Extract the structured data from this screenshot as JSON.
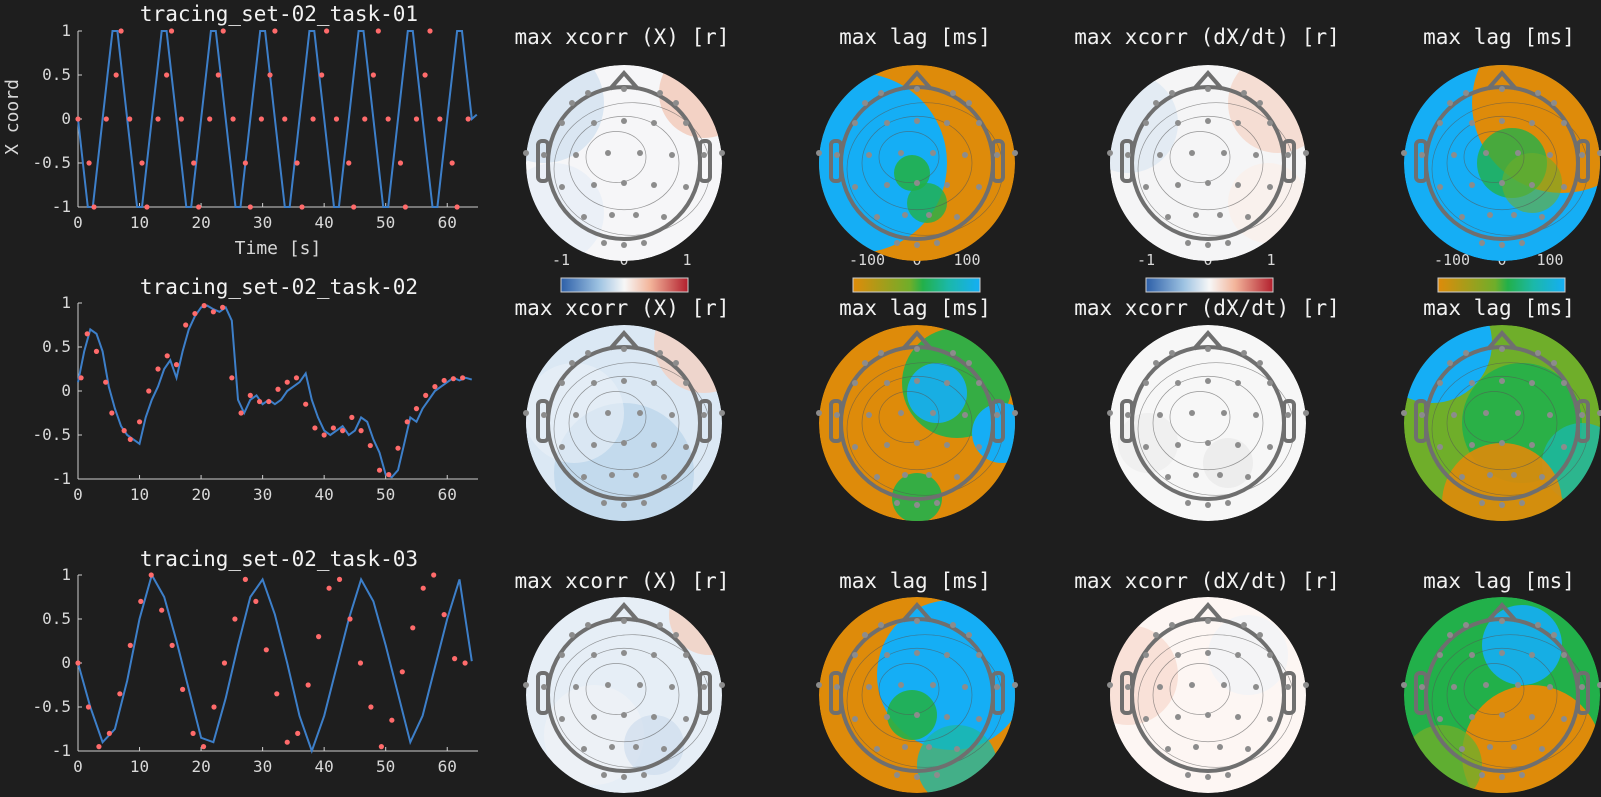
{
  "colors": {
    "background": "#1e1e1e",
    "trace": "#3d7fc9",
    "markers": "#ff6b6b",
    "lag_orange": "#de8b0a",
    "lag_green": "#22b04a",
    "lag_blue": "#15aef5",
    "xcorr_negative": "#2d5fa8",
    "xcorr_positive": "#b21f2d",
    "head_outline": "#6f6f6f"
  },
  "chart_data": [
    {
      "type": "line",
      "title": "tracing_set-02_task-01",
      "xlabel": "Time [s]",
      "ylabel": "X coord",
      "xlim": [
        0,
        65
      ],
      "ylim": [
        -1,
        1
      ],
      "xticks": [
        "0",
        "10",
        "20",
        "30",
        "40",
        "50",
        "60"
      ],
      "yticks": [
        "1",
        "0.5",
        "0",
        "-0.5",
        "-1"
      ],
      "series": [
        {
          "x": [
            0,
            0.8,
            1.6,
            2.4,
            3.2,
            4.0,
            4.8,
            5.6,
            6.4,
            7.2,
            8.0,
            8.8,
            9.6,
            10.4,
            11.2,
            12.0,
            12.8,
            13.6,
            14.4,
            15.2,
            16.0,
            16.8,
            17.6,
            18.4,
            19.2,
            20.0,
            20.8,
            21.6,
            22.4,
            23.2,
            24.0,
            24.8,
            25.6,
            26.4,
            27.2,
            28.0,
            28.8,
            29.6,
            30.4,
            31.2,
            32.0,
            32.8,
            33.6,
            34.4,
            35.2,
            36.0,
            36.8,
            37.6,
            38.4,
            39.2,
            40.0,
            40.8,
            41.6,
            42.4,
            43.2,
            44.0,
            44.8,
            45.6,
            46.4,
            47.2,
            48.0,
            48.8,
            49.6,
            50.4,
            51.2,
            52.0,
            52.8,
            53.6,
            54.4,
            55.2,
            56.0,
            56.8,
            57.6,
            58.4,
            59.2,
            60.0,
            60.8,
            61.6,
            62.4,
            63.2,
            64.0,
            64.8
          ],
          "y": [
            0,
            -0.5,
            -1,
            -1,
            -0.5,
            0,
            0.5,
            1,
            1,
            0.5,
            0,
            -0.5,
            -1,
            -1,
            -0.5,
            0,
            0.5,
            1,
            1,
            0.5,
            0,
            -0.5,
            -1,
            -1,
            -0.5,
            0,
            0.5,
            1,
            1,
            0.5,
            0,
            -0.5,
            -1,
            -1,
            -0.5,
            0,
            0.5,
            1,
            1,
            0.5,
            0,
            -0.5,
            -1,
            -1,
            -0.5,
            0,
            0.5,
            1,
            1,
            0.5,
            0,
            -0.5,
            -1,
            -1,
            -0.5,
            0,
            0.5,
            1,
            1,
            0.5,
            0,
            -0.5,
            -1,
            -1,
            -0.5,
            0,
            0.5,
            1,
            1,
            0.5,
            0,
            -0.5,
            -1,
            -1,
            -0.5,
            0,
            0.5,
            1,
            1,
            0.5,
            0,
            0.05
          ]
        }
      ],
      "markers": {
        "x": [
          0,
          1.8,
          2.6,
          4.6,
          6.2,
          7.0,
          8.4,
          10.4,
          11.2,
          13.0,
          14.4,
          15.2,
          16.8,
          18.8,
          19.6,
          21.4,
          22.8,
          23.6,
          25.2,
          27.2,
          28.0,
          29.8,
          31.2,
          32.0,
          33.6,
          35.6,
          36.4,
          38.2,
          39.6,
          40.4,
          42.0,
          44.0,
          44.8,
          46.6,
          48.0,
          48.8,
          50.4,
          52.4,
          53.2,
          55.0,
          56.4,
          57.2,
          58.8,
          60.8,
          61.6,
          63.4
        ],
        "y": [
          0,
          -0.5,
          -1,
          0,
          0.5,
          1,
          0,
          -0.5,
          -1,
          0,
          0.5,
          1,
          0,
          -0.5,
          -1,
          0,
          0.5,
          1,
          0,
          -0.5,
          -1,
          0,
          0.5,
          1,
          0,
          -0.5,
          -1,
          0,
          0.5,
          1,
          0,
          -0.5,
          -1,
          0,
          0.5,
          1,
          0,
          -0.5,
          -1,
          0,
          0.5,
          1,
          0,
          -0.5,
          -1,
          0
        ]
      }
    },
    {
      "type": "line",
      "title": "tracing_set-02_task-02",
      "xlim": [
        0,
        65
      ],
      "ylim": [
        -1,
        1
      ],
      "xticks": [
        "0",
        "10",
        "20",
        "30",
        "40",
        "50",
        "60"
      ],
      "yticks": [
        "1",
        "0.5",
        "0",
        "-0.5",
        "-1"
      ],
      "series": [
        {
          "x": [
            0,
            1,
            2,
            3,
            4,
            5,
            6,
            7,
            8,
            9,
            10,
            11,
            12,
            13,
            14,
            15,
            16,
            17,
            18,
            19,
            20,
            21,
            22,
            23,
            24,
            25,
            26,
            27,
            28,
            29,
            30,
            31,
            32,
            33,
            34,
            35,
            36,
            37,
            38,
            39,
            40,
            41,
            42,
            43,
            44,
            45,
            46,
            47,
            48,
            49,
            50,
            51,
            52,
            53,
            54,
            55,
            56,
            57,
            58,
            59,
            60,
            61,
            62,
            63,
            64
          ],
          "y": [
            0.1,
            0.45,
            0.7,
            0.65,
            0.45,
            0.05,
            -0.2,
            -0.4,
            -0.5,
            -0.55,
            -0.6,
            -0.3,
            -0.1,
            0.05,
            0.25,
            0.35,
            0.15,
            0.45,
            0.7,
            0.85,
            0.95,
            0.97,
            0.93,
            0.9,
            0.95,
            0.8,
            -0.1,
            -0.25,
            -0.1,
            -0.05,
            -0.15,
            -0.1,
            -0.15,
            -0.1,
            0,
            0.05,
            0.1,
            0.2,
            -0.1,
            -0.3,
            -0.45,
            -0.5,
            -0.45,
            -0.4,
            -0.5,
            -0.45,
            -0.3,
            -0.35,
            -0.55,
            -0.7,
            -0.95,
            -0.98,
            -0.9,
            -0.6,
            -0.3,
            -0.35,
            -0.2,
            -0.1,
            0,
            0.05,
            0.1,
            0.15,
            0.12,
            0.15,
            0.13
          ]
        }
      ],
      "markers": {
        "x": [
          0.5,
          1.5,
          3,
          4.5,
          5.5,
          7.5,
          8.5,
          10,
          11.5,
          13,
          14.5,
          16,
          17.5,
          19,
          20.5,
          22,
          23.5,
          25,
          26.5,
          28,
          29.5,
          31,
          32.5,
          34,
          35.5,
          37,
          38.5,
          40,
          41.5,
          43,
          44.5,
          46,
          47.5,
          49,
          50.5,
          52,
          53.5,
          55,
          56.5,
          58,
          59.5,
          61,
          62.5
        ],
        "y": [
          0.15,
          0.65,
          0.45,
          0.1,
          -0.25,
          -0.45,
          -0.55,
          -0.35,
          0,
          0.25,
          0.4,
          0.3,
          0.75,
          0.88,
          0.97,
          0.9,
          0.95,
          0.15,
          -0.25,
          -0.05,
          -0.12,
          -0.12,
          0.02,
          0.1,
          0.15,
          -0.15,
          -0.42,
          -0.5,
          -0.42,
          -0.45,
          -0.3,
          -0.45,
          -0.62,
          -0.9,
          -0.95,
          -0.65,
          -0.35,
          -0.2,
          -0.05,
          0.05,
          0.12,
          0.14,
          0.15
        ]
      }
    },
    {
      "type": "line",
      "title": "tracing_set-02_task-03",
      "xlim": [
        0,
        65
      ],
      "ylim": [
        -1,
        1
      ],
      "xticks": [
        "0",
        "10",
        "20",
        "30",
        "40",
        "50",
        "60"
      ],
      "yticks": [
        "1",
        "0.5",
        "0",
        "-0.5",
        "-1"
      ],
      "series": [
        {
          "x": [
            0,
            2,
            4,
            6,
            8,
            10,
            12,
            14,
            16,
            18,
            20,
            22,
            24,
            26,
            28,
            30,
            32,
            34,
            36,
            38,
            40,
            42,
            44,
            46,
            48,
            50,
            52,
            54,
            56,
            58,
            60,
            62,
            64
          ],
          "y": [
            0,
            -0.5,
            -0.9,
            -0.75,
            -0.2,
            0.5,
            1,
            0.75,
            0.25,
            -0.3,
            -0.85,
            -0.9,
            -0.4,
            0.2,
            0.75,
            0.95,
            0.55,
            0,
            -0.6,
            -1,
            -0.6,
            -0.05,
            0.5,
            0.95,
            0.7,
            0.2,
            -0.35,
            -0.9,
            -0.6,
            -0.05,
            0.5,
            0.95,
            0.02
          ]
        }
      ],
      "markers": {
        "x": [
          0,
          1.7,
          3.4,
          5.1,
          6.8,
          8.5,
          10.2,
          11.9,
          13.6,
          15.3,
          17,
          18.7,
          20.4,
          22.1,
          23.8,
          25.5,
          27.2,
          28.9,
          30.6,
          32.3,
          34,
          35.7,
          37.4,
          39.1,
          40.8,
          42.5,
          44.2,
          45.9,
          47.6,
          49.3,
          51,
          52.7,
          54.4,
          56.1,
          57.8,
          59.5,
          61.2,
          62.9
        ],
        "y": [
          0,
          -0.5,
          -0.95,
          -0.8,
          -0.35,
          0.2,
          0.7,
          1,
          0.6,
          0.2,
          -0.3,
          -0.8,
          -0.95,
          -0.5,
          0,
          0.5,
          0.95,
          0.7,
          0.15,
          -0.35,
          -0.9,
          -0.8,
          -0.25,
          0.3,
          0.85,
          0.95,
          0.5,
          0,
          -0.5,
          -0.95,
          -0.65,
          -0.1,
          0.4,
          0.85,
          1,
          0.55,
          0.05,
          0
        ]
      }
    }
  ],
  "topomaps": {
    "titles": [
      "max xcorr (X) [r]",
      "max lag [ms]",
      "max xcorr (dX/dt) [r]",
      "max lag [ms]"
    ],
    "colorbars": [
      {
        "ticks": [
          "-1",
          "0",
          "1"
        ],
        "scale": "xcorr"
      },
      {
        "ticks": [
          "-100",
          "0",
          "100"
        ],
        "scale": "lag_orange_to_blue"
      },
      {
        "ticks": [
          "-1",
          "0",
          "1"
        ],
        "scale": "xcorr"
      },
      {
        "ticks": [
          "-100",
          "0",
          "100"
        ],
        "scale": "lag_orange_to_blue"
      }
    ]
  }
}
